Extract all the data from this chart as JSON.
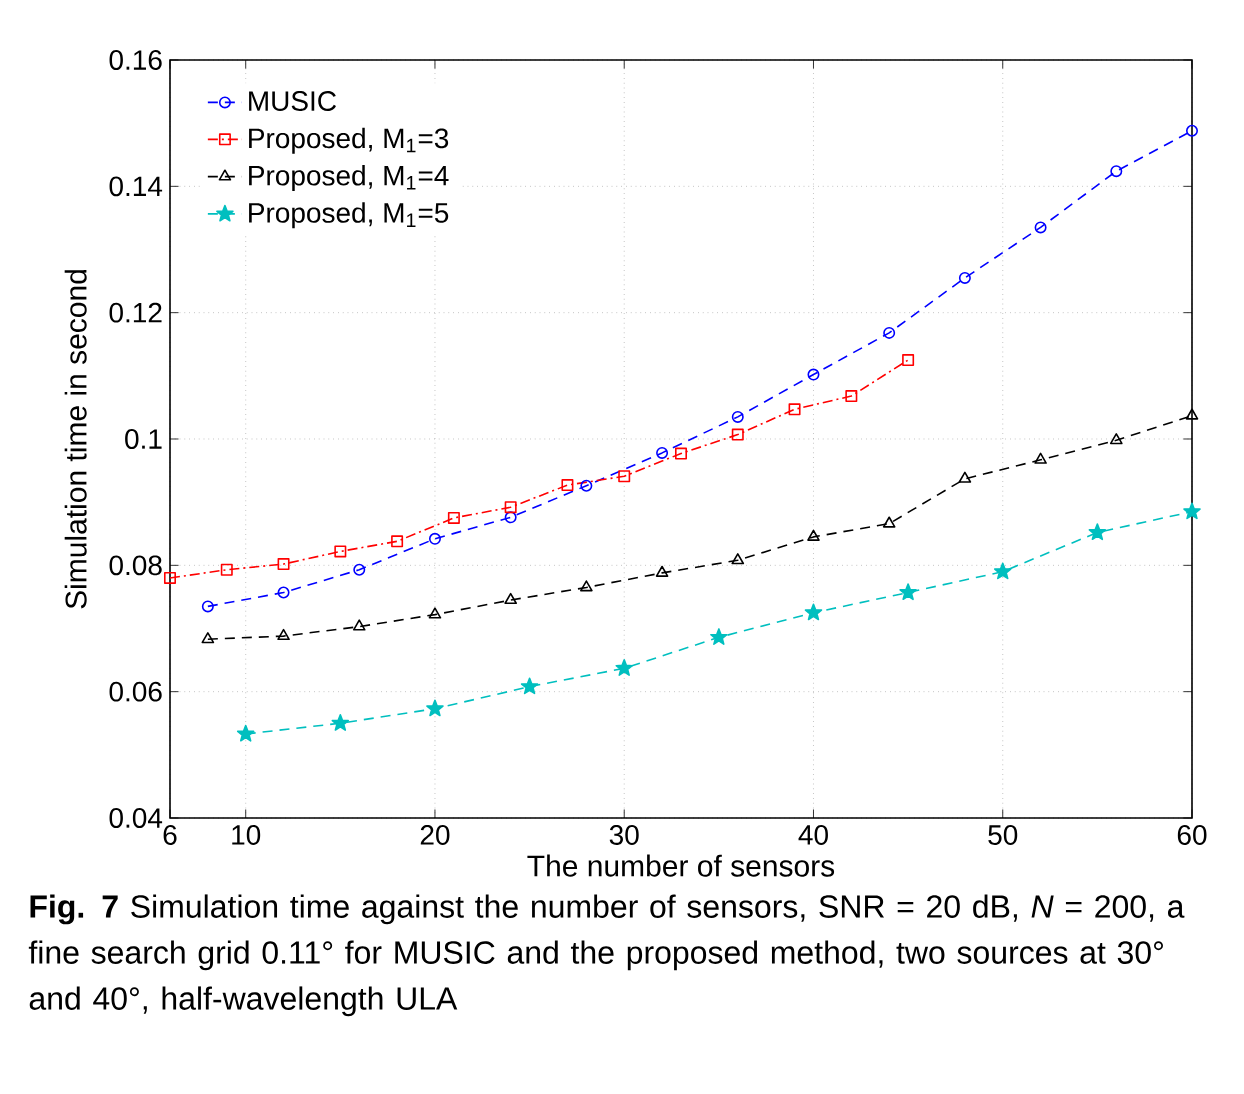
{
  "chart_data": {
    "type": "line",
    "xlabel": "The number of sensors",
    "ylabel": "Simulation time in second",
    "xlim": [
      6,
      60
    ],
    "xticks": [
      6,
      10,
      20,
      30,
      40,
      50,
      60
    ],
    "ylim": [
      0.04,
      0.16
    ],
    "yticks": [
      0.04,
      0.06,
      0.08,
      0.1,
      0.12,
      0.14,
      0.16
    ],
    "grid": true,
    "legend": "top left",
    "series": [
      {
        "name": "MUSIC",
        "color": "#0000ff",
        "marker": "circle",
        "line_style": "dashed",
        "x": [
          8,
          12,
          16,
          20,
          24,
          28,
          32,
          36,
          40,
          44,
          48,
          52,
          56,
          60
        ],
        "values": [
          0.0735,
          0.0757,
          0.0793,
          0.0842,
          0.0876,
          0.0926,
          0.0978,
          0.1035,
          0.1102,
          0.1168,
          0.1255,
          0.1335,
          0.1424,
          0.1488
        ]
      },
      {
        "name": "Proposed, M$_{1}$=3",
        "color": "#ff0000",
        "marker": "square",
        "line_style": "dashdot",
        "x": [
          6,
          9,
          12,
          15,
          18,
          21,
          24,
          27,
          30,
          33,
          36,
          39,
          42,
          45
        ],
        "values": [
          0.078,
          0.0793,
          0.0802,
          0.0822,
          0.0838,
          0.0875,
          0.0892,
          0.0927,
          0.0941,
          0.0977,
          0.1007,
          0.1047,
          0.1068,
          0.1125
        ]
      },
      {
        "name": "Proposed, M$_{1}$=4",
        "color": "#000000",
        "marker": "triangle",
        "line_style": "dashed",
        "x": [
          8,
          12,
          16,
          20,
          24,
          28,
          32,
          36,
          40,
          44,
          48,
          52,
          56,
          60
        ],
        "values": [
          0.0683,
          0.0688,
          0.0703,
          0.0722,
          0.0745,
          0.0765,
          0.0788,
          0.0808,
          0.0845,
          0.0866,
          0.0937,
          0.0967,
          0.0998,
          0.1037
        ]
      },
      {
        "name": "Proposed, M$_{1}$=5",
        "color": "#00bfbf",
        "marker": "star",
        "line_style": "dashed",
        "x": [
          10,
          15,
          20,
          25,
          30,
          35,
          40,
          45,
          50,
          55,
          60
        ],
        "values": [
          0.0533,
          0.055,
          0.0573,
          0.0608,
          0.0637,
          0.0686,
          0.0725,
          0.0757,
          0.079,
          0.0852,
          0.0885
        ]
      }
    ],
    "annotations": [
      "**Fig. 7** Simulation time against the number of sensors, SNR = 20 dB, *N* = 200, a fine search grid 0.11° for MUSIC and the proposed method, two sources at 30° and 40°, half-wavelength ULA"
    ]
  }
}
